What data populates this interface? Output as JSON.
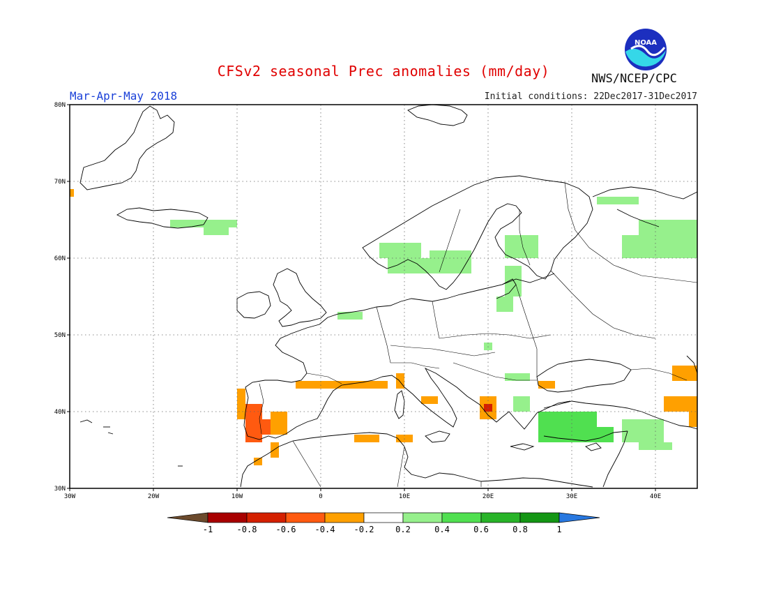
{
  "header": {
    "title": "CFSv2 seasonal Prec anomalies (mm/day)",
    "period": "Mar-Apr-May 2018",
    "initial_conditions": "Initial conditions: 22Dec2017-31Dec2017",
    "agency": "NWS/NCEP/CPC",
    "logo_text": "NOAA"
  },
  "map": {
    "lon_labels": [
      "30W",
      "20W",
      "10W",
      "0",
      "10E",
      "20E",
      "30E",
      "40E"
    ],
    "lat_labels": [
      "80N",
      "70N",
      "60N",
      "50N",
      "40N",
      "30N"
    ],
    "lon_range": [
      -30,
      45
    ],
    "lat_range": [
      30,
      80
    ]
  },
  "colorbar": {
    "labels": [
      "-1",
      "-0.8",
      "-0.6",
      "-0.4",
      "-0.2",
      "0.2",
      "0.4",
      "0.6",
      "0.8",
      "1"
    ],
    "colors": {
      "lt_minus1": "#6b4a2c",
      "m1_m08": "#a80000",
      "m08_m06": "#d42000",
      "m06_m04": "#ff5a10",
      "m04_m02": "#ffa000",
      "m02_02": "#ffffff",
      "p02_p04": "#96f08c",
      "p04_p06": "#50e050",
      "p06_p08": "#28b428",
      "p08_p1": "#149614",
      "gt_1": "#2878e0"
    }
  },
  "chart_data": {
    "type": "heatmap",
    "title": "CFSv2 seasonal Prec anomalies (mm/day)",
    "subtitle": "Mar-Apr-May 2018",
    "xlim": [
      -30,
      45
    ],
    "ylim": [
      30,
      80
    ],
    "cells": [
      {
        "lon": [
          -18,
          -10
        ],
        "lat": [
          64,
          65
        ],
        "class": "p02_p04"
      },
      {
        "lon": [
          -14,
          -11
        ],
        "lat": [
          63,
          64
        ],
        "class": "p02_p04"
      },
      {
        "lon": [
          -30,
          -29.5
        ],
        "lat": [
          68,
          69
        ],
        "class": "m04_m02"
      },
      {
        "lon": [
          2,
          5
        ],
        "lat": [
          52,
          53
        ],
        "class": "p02_p04"
      },
      {
        "lon": [
          7,
          12
        ],
        "lat": [
          60,
          62
        ],
        "class": "p02_p04"
      },
      {
        "lon": [
          8,
          13
        ],
        "lat": [
          58,
          60
        ],
        "class": "p02_p04"
      },
      {
        "lon": [
          13,
          18
        ],
        "lat": [
          58,
          61
        ],
        "class": "p02_p04"
      },
      {
        "lon": [
          22,
          26
        ],
        "lat": [
          60,
          63
        ],
        "class": "p02_p04"
      },
      {
        "lon": [
          22,
          24
        ],
        "lat": [
          55,
          59
        ],
        "class": "p02_p04"
      },
      {
        "lon": [
          21,
          23
        ],
        "lat": [
          53,
          55
        ],
        "class": "p02_p04"
      },
      {
        "lon": [
          33,
          38
        ],
        "lat": [
          67,
          68
        ],
        "class": "p02_p04"
      },
      {
        "lon": [
          36,
          45
        ],
        "lat": [
          60,
          63
        ],
        "class": "p02_p04"
      },
      {
        "lon": [
          38,
          45
        ],
        "lat": [
          63,
          65
        ],
        "class": "p02_p04"
      },
      {
        "lon": [
          19.5,
          20.5
        ],
        "lat": [
          48,
          49
        ],
        "class": "p02_p04"
      },
      {
        "lon": [
          22,
          25
        ],
        "lat": [
          44,
          45
        ],
        "class": "p02_p04"
      },
      {
        "lon": [
          23,
          25
        ],
        "lat": [
          40,
          42
        ],
        "class": "p02_p04"
      },
      {
        "lon": [
          26,
          33
        ],
        "lat": [
          36,
          40
        ],
        "class": "p04_p06"
      },
      {
        "lon": [
          29,
          35
        ],
        "lat": [
          36,
          38
        ],
        "class": "p04_p06"
      },
      {
        "lon": [
          36,
          41
        ],
        "lat": [
          36,
          39
        ],
        "class": "p02_p04"
      },
      {
        "lon": [
          38,
          42
        ],
        "lat": [
          35,
          36
        ],
        "class": "p02_p04"
      },
      {
        "lon": [
          -10,
          -9
        ],
        "lat": [
          39,
          43
        ],
        "class": "m04_m02"
      },
      {
        "lon": [
          -9,
          -7
        ],
        "lat": [
          36,
          41
        ],
        "class": "m06_m04"
      },
      {
        "lon": [
          -7,
          -6
        ],
        "lat": [
          37,
          39
        ],
        "class": "m06_m04"
      },
      {
        "lon": [
          -6,
          -4
        ],
        "lat": [
          37,
          40
        ],
        "class": "m04_m02"
      },
      {
        "lon": [
          -6,
          -5
        ],
        "lat": [
          34,
          36
        ],
        "class": "m04_m02"
      },
      {
        "lon": [
          -8,
          -7
        ],
        "lat": [
          33,
          34
        ],
        "class": "m04_m02"
      },
      {
        "lon": [
          -3,
          8
        ],
        "lat": [
          43,
          44
        ],
        "class": "m04_m02"
      },
      {
        "lon": [
          9,
          10
        ],
        "lat": [
          43,
          45
        ],
        "class": "m04_m02"
      },
      {
        "lon": [
          12,
          14
        ],
        "lat": [
          41,
          42
        ],
        "class": "m04_m02"
      },
      {
        "lon": [
          4,
          7
        ],
        "lat": [
          36,
          37
        ],
        "class": "m04_m02"
      },
      {
        "lon": [
          9,
          11
        ],
        "lat": [
          36,
          37
        ],
        "class": "m04_m02"
      },
      {
        "lon": [
          19,
          21
        ],
        "lat": [
          39,
          42
        ],
        "class": "m04_m02"
      },
      {
        "lon": [
          19.5,
          20.5
        ],
        "lat": [
          40,
          41
        ],
        "class": "m08_m06"
      },
      {
        "lon": [
          26,
          28
        ],
        "lat": [
          43,
          44
        ],
        "class": "m04_m02"
      },
      {
        "lon": [
          42,
          45
        ],
        "lat": [
          44,
          46
        ],
        "class": "m04_m02"
      },
      {
        "lon": [
          41,
          45
        ],
        "lat": [
          40,
          42
        ],
        "class": "m04_m02"
      },
      {
        "lon": [
          44,
          45
        ],
        "lat": [
          38,
          40
        ],
        "class": "m04_m02"
      }
    ]
  }
}
